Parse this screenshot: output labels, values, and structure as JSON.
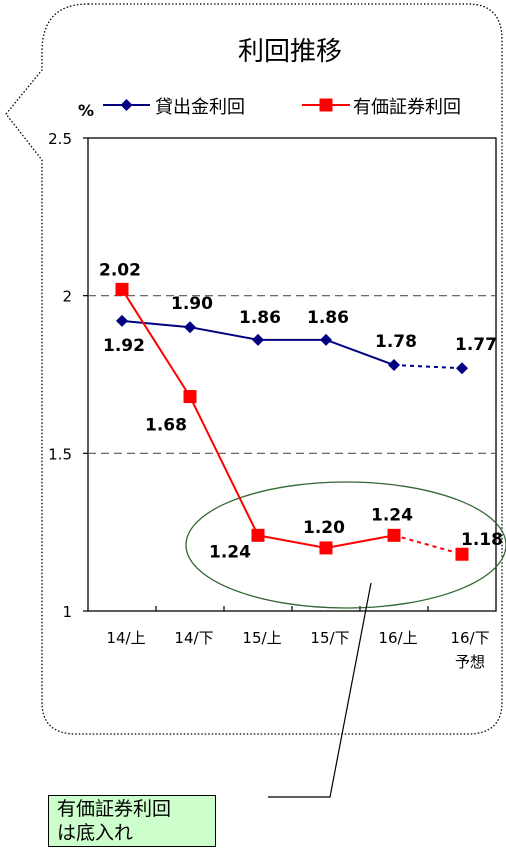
{
  "chart_data": {
    "type": "line",
    "title": "利回推移",
    "unit_label": "%",
    "categories": [
      "14/上",
      "14/下",
      "15/上",
      "15/下",
      "16/上",
      "16/下予想"
    ],
    "category_lines": [
      [
        "14/上"
      ],
      [
        "14/下"
      ],
      [
        "15/上"
      ],
      [
        "15/下"
      ],
      [
        "16/上"
      ],
      [
        "16/下",
        "予想"
      ]
    ],
    "ylim": [
      1,
      2.5
    ],
    "yticks": [
      "1",
      "1.5",
      "2",
      "2.5"
    ],
    "ytick_values": [
      1,
      1.5,
      2,
      2.5
    ],
    "gridlines_dashed_at": [
      1.5,
      2
    ],
    "forecast_from_index": 4,
    "legend_placement": "top",
    "series": [
      {
        "name": "貸出金利回",
        "values": [
          1.92,
          1.9,
          1.86,
          1.86,
          1.78,
          1.77
        ],
        "labels": [
          "1.92",
          "1.90",
          "1.86",
          "1.86",
          "1.78",
          "1.77"
        ],
        "color": "#000080",
        "marker": "diamond"
      },
      {
        "name": "有価証券利回",
        "values": [
          2.02,
          1.68,
          1.24,
          1.2,
          1.24,
          1.18
        ],
        "labels": [
          "2.02",
          "1.68",
          "1.24",
          "1.20",
          "1.24",
          "1.18"
        ],
        "color": "#ff0000",
        "marker": "square"
      }
    ],
    "annotation": {
      "lines": [
        "有価証券利回",
        "は底入れ"
      ],
      "ellipse_color": "#336633",
      "background": "#ccffcc"
    }
  }
}
